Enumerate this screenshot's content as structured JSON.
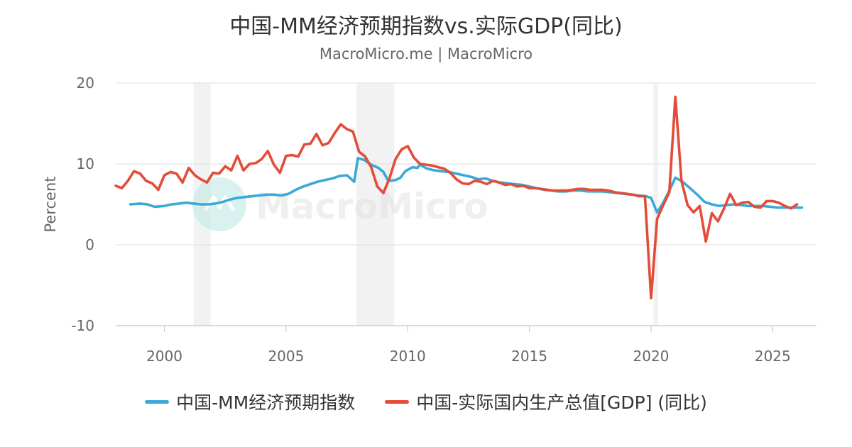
{
  "title": "中国-MM经济预期指数vs.实际GDP(同比)",
  "subtitle": "MacroMicro.me | MacroMicro",
  "watermark": "MacroMicro",
  "chart_data": {
    "type": "line",
    "ylabel": "Percent",
    "xlabel": "",
    "xlim": [
      1998,
      2026.8
    ],
    "ylim": [
      -10,
      20
    ],
    "yticks": [
      20,
      10,
      0,
      -10
    ],
    "xticks": [
      2000,
      2005,
      2010,
      2015,
      2020,
      2025
    ],
    "grid": true,
    "legend_position": "bottom",
    "recessions": [
      [
        2001.2,
        2001.9
      ],
      [
        2007.9,
        2009.45
      ],
      [
        2020.1,
        2020.3
      ]
    ],
    "series": [
      {
        "name": "中国-MM经济预期指数",
        "color": "#3aa9d8",
        "points": [
          [
            1998.6,
            5.0
          ],
          [
            1999.0,
            5.1
          ],
          [
            1999.3,
            5.0
          ],
          [
            1999.6,
            4.7
          ],
          [
            2000.0,
            4.8
          ],
          [
            2000.3,
            5.0
          ],
          [
            2000.6,
            5.1
          ],
          [
            2000.9,
            5.2
          ],
          [
            2001.2,
            5.1
          ],
          [
            2001.5,
            5.0
          ],
          [
            2001.8,
            5.0
          ],
          [
            2002.1,
            5.1
          ],
          [
            2002.4,
            5.3
          ],
          [
            2002.7,
            5.6
          ],
          [
            2003.0,
            5.8
          ],
          [
            2003.3,
            5.9
          ],
          [
            2003.6,
            6.0
          ],
          [
            2003.9,
            6.1
          ],
          [
            2004.2,
            6.2
          ],
          [
            2004.5,
            6.2
          ],
          [
            2004.8,
            6.1
          ],
          [
            2005.1,
            6.3
          ],
          [
            2005.4,
            6.8
          ],
          [
            2005.7,
            7.2
          ],
          [
            2006.0,
            7.5
          ],
          [
            2006.3,
            7.8
          ],
          [
            2006.6,
            8.0
          ],
          [
            2006.9,
            8.2
          ],
          [
            2007.2,
            8.5
          ],
          [
            2007.5,
            8.6
          ],
          [
            2007.8,
            7.8
          ],
          [
            2007.95,
            10.7
          ],
          [
            2008.2,
            10.5
          ],
          [
            2008.5,
            9.9
          ],
          [
            2008.8,
            9.5
          ],
          [
            2009.0,
            9.0
          ],
          [
            2009.2,
            7.9
          ],
          [
            2009.5,
            8.0
          ],
          [
            2009.7,
            8.3
          ],
          [
            2009.9,
            9.1
          ],
          [
            2010.2,
            9.6
          ],
          [
            2010.4,
            9.5
          ],
          [
            2010.5,
            9.9
          ],
          [
            2010.8,
            9.4
          ],
          [
            2011.1,
            9.2
          ],
          [
            2011.4,
            9.1
          ],
          [
            2011.7,
            9.0
          ],
          [
            2012.0,
            8.8
          ],
          [
            2012.3,
            8.6
          ],
          [
            2012.6,
            8.4
          ],
          [
            2012.9,
            8.1
          ],
          [
            2013.2,
            8.2
          ],
          [
            2013.5,
            7.9
          ],
          [
            2013.8,
            7.7
          ],
          [
            2014.1,
            7.6
          ],
          [
            2014.4,
            7.5
          ],
          [
            2014.7,
            7.4
          ],
          [
            2015.0,
            7.2
          ],
          [
            2015.3,
            7.0
          ],
          [
            2015.6,
            6.8
          ],
          [
            2015.9,
            6.7
          ],
          [
            2016.2,
            6.6
          ],
          [
            2016.5,
            6.6
          ],
          [
            2016.8,
            6.7
          ],
          [
            2017.1,
            6.7
          ],
          [
            2017.4,
            6.6
          ],
          [
            2017.7,
            6.6
          ],
          [
            2018.0,
            6.6
          ],
          [
            2018.3,
            6.5
          ],
          [
            2018.6,
            6.4
          ],
          [
            2018.9,
            6.3
          ],
          [
            2019.2,
            6.2
          ],
          [
            2019.5,
            6.1
          ],
          [
            2019.8,
            6.0
          ],
          [
            2020.0,
            5.8
          ],
          [
            2020.25,
            4.0
          ],
          [
            2020.5,
            5.2
          ],
          [
            2020.8,
            7.0
          ],
          [
            2021.0,
            8.3
          ],
          [
            2021.3,
            7.8
          ],
          [
            2021.6,
            7.0
          ],
          [
            2021.9,
            6.2
          ],
          [
            2022.2,
            5.3
          ],
          [
            2022.5,
            5.0
          ],
          [
            2022.8,
            4.8
          ],
          [
            2023.1,
            4.9
          ],
          [
            2023.4,
            5.0
          ],
          [
            2023.7,
            4.9
          ],
          [
            2024.0,
            4.8
          ],
          [
            2024.3,
            4.8
          ],
          [
            2024.6,
            4.8
          ],
          [
            2024.9,
            4.7
          ],
          [
            2025.2,
            4.6
          ],
          [
            2025.5,
            4.6
          ],
          [
            2025.8,
            4.6
          ],
          [
            2026.2,
            4.6
          ]
        ]
      },
      {
        "name": "中国-实际国内生产总值[GDP] (同比)",
        "color": "#e34c38",
        "points": [
          [
            1998.0,
            7.3
          ],
          [
            1998.25,
            7.0
          ],
          [
            1998.5,
            7.9
          ],
          [
            1998.75,
            9.1
          ],
          [
            1999.0,
            8.8
          ],
          [
            1999.25,
            7.9
          ],
          [
            1999.5,
            7.6
          ],
          [
            1999.75,
            6.8
          ],
          [
            2000.0,
            8.6
          ],
          [
            2000.25,
            9.0
          ],
          [
            2000.5,
            8.8
          ],
          [
            2000.75,
            7.7
          ],
          [
            2001.0,
            9.5
          ],
          [
            2001.25,
            8.6
          ],
          [
            2001.5,
            8.1
          ],
          [
            2001.75,
            7.7
          ],
          [
            2002.0,
            8.9
          ],
          [
            2002.25,
            8.8
          ],
          [
            2002.5,
            9.7
          ],
          [
            2002.75,
            9.2
          ],
          [
            2003.0,
            11.0
          ],
          [
            2003.25,
            9.2
          ],
          [
            2003.5,
            10.0
          ],
          [
            2003.75,
            10.1
          ],
          [
            2004.0,
            10.6
          ],
          [
            2004.25,
            11.6
          ],
          [
            2004.5,
            9.9
          ],
          [
            2004.75,
            8.9
          ],
          [
            2005.0,
            11.0
          ],
          [
            2005.25,
            11.1
          ],
          [
            2005.5,
            10.9
          ],
          [
            2005.75,
            12.4
          ],
          [
            2006.0,
            12.5
          ],
          [
            2006.25,
            13.7
          ],
          [
            2006.5,
            12.3
          ],
          [
            2006.75,
            12.6
          ],
          [
            2007.0,
            13.8
          ],
          [
            2007.25,
            14.9
          ],
          [
            2007.5,
            14.3
          ],
          [
            2007.75,
            14.0
          ],
          [
            2008.0,
            11.5
          ],
          [
            2008.25,
            10.9
          ],
          [
            2008.5,
            9.6
          ],
          [
            2008.75,
            7.2
          ],
          [
            2009.0,
            6.4
          ],
          [
            2009.25,
            8.2
          ],
          [
            2009.5,
            10.6
          ],
          [
            2009.75,
            11.8
          ],
          [
            2010.0,
            12.2
          ],
          [
            2010.25,
            10.8
          ],
          [
            2010.5,
            10.0
          ],
          [
            2010.75,
            9.9
          ],
          [
            2011.0,
            9.8
          ],
          [
            2011.25,
            9.6
          ],
          [
            2011.5,
            9.4
          ],
          [
            2011.75,
            8.9
          ],
          [
            2012.0,
            8.1
          ],
          [
            2012.25,
            7.6
          ],
          [
            2012.5,
            7.5
          ],
          [
            2012.75,
            7.9
          ],
          [
            2013.0,
            7.8
          ],
          [
            2013.25,
            7.5
          ],
          [
            2013.5,
            7.9
          ],
          [
            2013.75,
            7.7
          ],
          [
            2014.0,
            7.4
          ],
          [
            2014.25,
            7.5
          ],
          [
            2014.5,
            7.2
          ],
          [
            2014.75,
            7.3
          ],
          [
            2015.0,
            7.0
          ],
          [
            2015.25,
            7.0
          ],
          [
            2015.5,
            6.9
          ],
          [
            2015.75,
            6.8
          ],
          [
            2016.0,
            6.7
          ],
          [
            2016.25,
            6.7
          ],
          [
            2016.5,
            6.7
          ],
          [
            2016.75,
            6.8
          ],
          [
            2017.0,
            6.9
          ],
          [
            2017.25,
            6.9
          ],
          [
            2017.5,
            6.8
          ],
          [
            2017.75,
            6.8
          ],
          [
            2018.0,
            6.8
          ],
          [
            2018.25,
            6.7
          ],
          [
            2018.5,
            6.5
          ],
          [
            2018.75,
            6.4
          ],
          [
            2019.0,
            6.3
          ],
          [
            2019.25,
            6.2
          ],
          [
            2019.5,
            6.0
          ],
          [
            2019.75,
            6.0
          ],
          [
            2020.0,
            -6.6
          ],
          [
            2020.25,
            3.2
          ],
          [
            2020.5,
            4.9
          ],
          [
            2020.75,
            6.5
          ],
          [
            2021.0,
            18.3
          ],
          [
            2021.25,
            7.9
          ],
          [
            2021.5,
            4.9
          ],
          [
            2021.75,
            4.0
          ],
          [
            2022.0,
            4.8
          ],
          [
            2022.25,
            0.4
          ],
          [
            2022.5,
            3.9
          ],
          [
            2022.75,
            2.9
          ],
          [
            2023.0,
            4.5
          ],
          [
            2023.25,
            6.3
          ],
          [
            2023.5,
            4.9
          ],
          [
            2023.75,
            5.2
          ],
          [
            2024.0,
            5.3
          ],
          [
            2024.25,
            4.7
          ],
          [
            2024.5,
            4.6
          ],
          [
            2024.75,
            5.4
          ],
          [
            2025.0,
            5.4
          ],
          [
            2025.25,
            5.2
          ],
          [
            2025.5,
            4.8
          ],
          [
            2025.75,
            4.5
          ],
          [
            2026.0,
            5.0
          ]
        ]
      }
    ]
  }
}
